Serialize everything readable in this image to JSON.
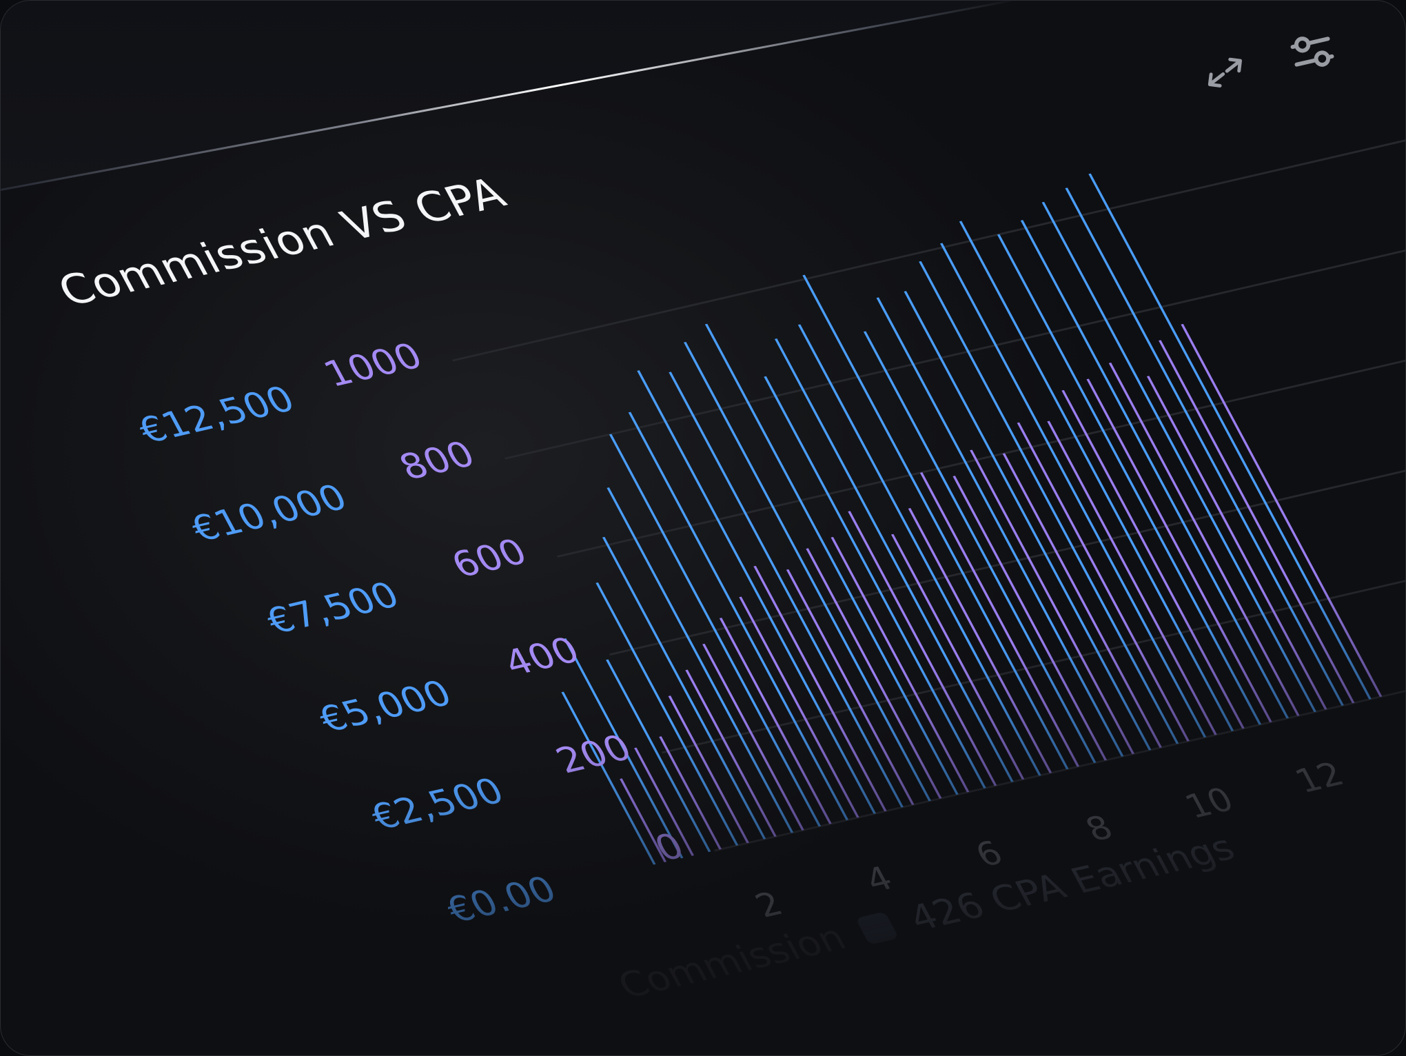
{
  "title": "Commission VS CPA",
  "toolbar": {
    "icons": [
      "expand-icon",
      "sliders-icon"
    ]
  },
  "legend": [
    {
      "label": "Commission",
      "color": "#4f9cf7"
    },
    {
      "label": "426 CPA Earnings",
      "color": "#333b4c"
    }
  ],
  "colors": {
    "commission": "#4a9df8",
    "cpa": "#9b7ef0",
    "grid": "#26282d"
  },
  "chart_data": {
    "type": "bar",
    "title": "Commission VS CPA",
    "y_left": {
      "ticks": [
        "€0.00",
        "€2,500",
        "€5,000",
        "€7,500",
        "€10,000",
        "€12,500"
      ],
      "ylim": [
        0,
        12500
      ]
    },
    "y_right": {
      "ticks": [
        "0",
        "200",
        "400",
        "600",
        "800",
        "1000"
      ],
      "ylim": [
        0,
        1000
      ]
    },
    "x_ticks": [
      "2",
      "4",
      "6",
      "8",
      "10",
      "12"
    ],
    "x": [
      0.5,
      1,
      1.5,
      2,
      2.5,
      3,
      3.5,
      4,
      4.5,
      5,
      5.5,
      6,
      6.5,
      7,
      7.5,
      8,
      8.5,
      9,
      9.5,
      10,
      10.5,
      11,
      11.5,
      12,
      12.5,
      13,
      13.5
    ],
    "grid": true,
    "legend_position": "bottom",
    "series": [
      {
        "name": "Commission",
        "axis": "left",
        "values": [
          4400,
          5600,
          4900,
          6700,
          7700,
          8800,
          10000,
          10400,
          11300,
          11100,
          11700,
          12000,
          10500,
          11300,
          11500,
          12600,
          11000,
          11700,
          11700,
          12300,
          12600,
          13000,
          12500,
          12700,
          13000,
          13200,
          13400
        ]
      },
      {
        "name": "CPA Earnings",
        "axis": "right",
        "values": [
          170,
          220,
          230,
          300,
          340,
          380,
          420,
          450,
          500,
          480,
          510,
          520,
          560,
          500,
          540,
          600,
          580,
          620,
          600,
          650,
          640,
          690,
          700,
          720,
          680,
          740,
          760
        ]
      }
    ]
  }
}
